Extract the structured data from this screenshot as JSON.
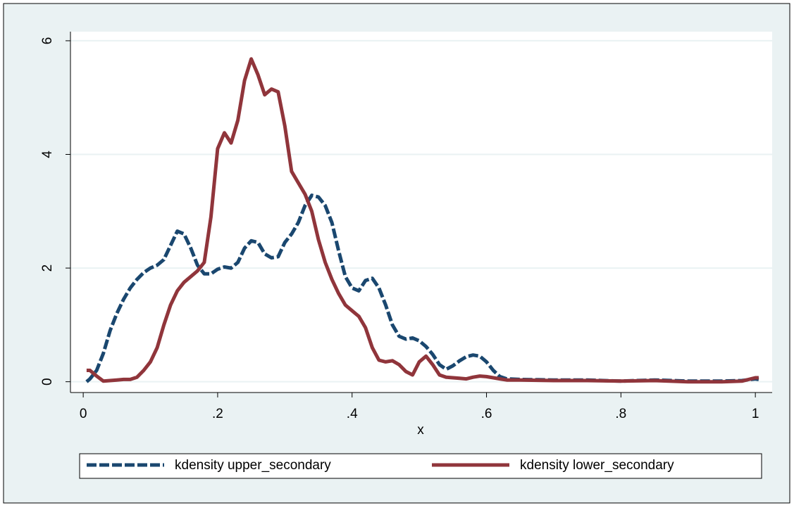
{
  "chart_data": {
    "type": "line",
    "xlabel": "x",
    "x": [
      0.005,
      0.01,
      0.02,
      0.03,
      0.04,
      0.05,
      0.06,
      0.07,
      0.08,
      0.09,
      0.1,
      0.11,
      0.12,
      0.13,
      0.14,
      0.15,
      0.16,
      0.17,
      0.18,
      0.19,
      0.2,
      0.21,
      0.22,
      0.23,
      0.24,
      0.25,
      0.26,
      0.27,
      0.28,
      0.29,
      0.3,
      0.31,
      0.32,
      0.33,
      0.34,
      0.35,
      0.36,
      0.37,
      0.38,
      0.39,
      0.4,
      0.41,
      0.42,
      0.43,
      0.44,
      0.45,
      0.46,
      0.47,
      0.48,
      0.49,
      0.5,
      0.51,
      0.52,
      0.53,
      0.54,
      0.55,
      0.56,
      0.57,
      0.58,
      0.59,
      0.6,
      0.61,
      0.62,
      0.63,
      0.65,
      0.7,
      0.75,
      0.8,
      0.85,
      0.9,
      0.95,
      0.98,
      1.0,
      1.005
    ],
    "series": [
      {
        "name": "kdensity upper_secondary",
        "color": "#1a476f",
        "dashed": true,
        "values": [
          0,
          0.05,
          0.2,
          0.5,
          0.9,
          1.2,
          1.45,
          1.65,
          1.8,
          1.92,
          2.0,
          2.05,
          2.15,
          2.4,
          2.65,
          2.6,
          2.35,
          2.05,
          1.9,
          1.9,
          1.98,
          2.02,
          2.0,
          2.1,
          2.35,
          2.48,
          2.45,
          2.25,
          2.18,
          2.2,
          2.45,
          2.6,
          2.8,
          3.1,
          3.28,
          3.25,
          3.1,
          2.8,
          2.3,
          1.85,
          1.65,
          1.6,
          1.78,
          1.82,
          1.65,
          1.35,
          1.0,
          0.8,
          0.75,
          0.77,
          0.72,
          0.62,
          0.48,
          0.3,
          0.22,
          0.28,
          0.37,
          0.44,
          0.47,
          0.45,
          0.35,
          0.2,
          0.09,
          0.05,
          0.04,
          0.03,
          0.03,
          0.01,
          0.03,
          0.01,
          0.01,
          0.02,
          0.05,
          0.04
        ]
      },
      {
        "name": "kdensity lower_secondary",
        "color": "#90353b",
        "dashed": false,
        "values": [
          0.2,
          0.2,
          0.1,
          0.01,
          0.02,
          0.03,
          0.04,
          0.04,
          0.08,
          0.2,
          0.35,
          0.6,
          1.0,
          1.35,
          1.6,
          1.75,
          1.85,
          1.95,
          2.1,
          2.9,
          4.1,
          4.38,
          4.2,
          4.6,
          5.3,
          5.68,
          5.4,
          5.05,
          5.15,
          5.1,
          4.5,
          3.7,
          3.5,
          3.3,
          3.0,
          2.5,
          2.1,
          1.8,
          1.55,
          1.35,
          1.25,
          1.15,
          0.95,
          0.6,
          0.38,
          0.35,
          0.37,
          0.3,
          0.18,
          0.12,
          0.35,
          0.45,
          0.3,
          0.12,
          0.08,
          0.07,
          0.06,
          0.05,
          0.08,
          0.1,
          0.09,
          0.07,
          0.05,
          0.03,
          0.03,
          0.02,
          0.02,
          0.01,
          0.02,
          0,
          0,
          0.01,
          0.07,
          0.07
        ]
      }
    ],
    "xlim": [
      -0.019,
      1.025
    ],
    "xticks": [
      0,
      {
        "value": 0.2,
        "label": ".2"
      },
      {
        "value": 0.4,
        "label": ".4"
      },
      {
        "value": 0.6,
        "label": ".6"
      },
      {
        "value": 0.8,
        "label": ".8"
      },
      1
    ],
    "ylim": [
      -0.19,
      6.16
    ],
    "yticks": [
      0,
      2,
      4,
      6
    ],
    "grid": true,
    "legend": "bottom"
  }
}
